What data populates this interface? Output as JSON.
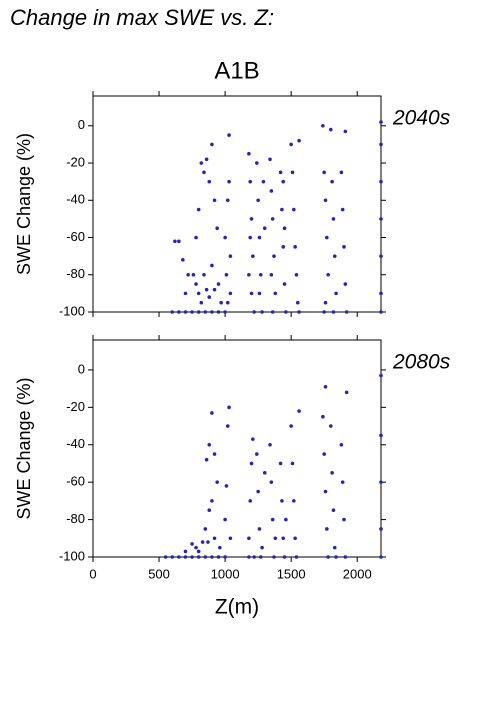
{
  "title": "Change in max SWE vs. Z:",
  "subtitle": "A1B",
  "chart_data": [
    {
      "type": "scatter",
      "label": "2040s",
      "ylabel": "SWE Change (%)",
      "color": "#2626b4",
      "label_color": "#2626b4",
      "xlim": [
        0,
        2180
      ],
      "ylim": [
        -100,
        16
      ],
      "xticks": [
        0,
        500,
        1000,
        1500,
        2000
      ],
      "yticks": [
        -100,
        -80,
        -60,
        -40,
        -20,
        0
      ],
      "show_xtick_labels": false,
      "x": [
        600,
        650,
        700,
        750,
        800,
        850,
        900,
        950,
        1000,
        620,
        650,
        680,
        700,
        720,
        760,
        780,
        800,
        820,
        840,
        860,
        880,
        780,
        800,
        820,
        840,
        860,
        880,
        900,
        920,
        940,
        900,
        920,
        950,
        970,
        1000,
        1010,
        1020,
        1030,
        1030,
        1040,
        1040,
        1020,
        1180,
        1190,
        1200,
        1210,
        1200,
        1220,
        1180,
        1190,
        1240,
        1250,
        1260,
        1270,
        1280,
        1290,
        1300,
        1260,
        1340,
        1350,
        1360,
        1370,
        1380,
        1360,
        1350,
        1420,
        1430,
        1440,
        1450,
        1460,
        1440,
        1450,
        1500,
        1510,
        1520,
        1530,
        1540,
        1550,
        1560,
        1560,
        1740,
        1750,
        1760,
        1770,
        1780,
        1750,
        1760,
        1800,
        1810,
        1820,
        1830,
        1840,
        1820,
        1880,
        1890,
        1900,
        1910,
        1920,
        1910,
        2180,
        2180,
        2180,
        2180,
        2180,
        2180,
        2180
      ],
      "values": [
        -100,
        -100,
        -100,
        -100,
        -100,
        -100,
        -100,
        -100,
        -100,
        -62,
        -62,
        -72,
        -90,
        -80,
        -80,
        -85,
        -90,
        -95,
        -80,
        -88,
        -92,
        -60,
        -45,
        -20,
        -25,
        -18,
        -30,
        -10,
        -40,
        -55,
        -75,
        -88,
        -85,
        -95,
        -60,
        -80,
        -40,
        -5,
        -30,
        -90,
        -70,
        -95,
        -15,
        -30,
        -50,
        -70,
        -90,
        -100,
        -80,
        -60,
        -20,
        -40,
        -60,
        -80,
        -100,
        -30,
        -55,
        -90,
        -18,
        -35,
        -50,
        -70,
        -90,
        -100,
        -80,
        -25,
        -45,
        -65,
        -85,
        -100,
        -30,
        -55,
        -10,
        -25,
        -45,
        -65,
        -80,
        -95,
        -8,
        -100,
        0,
        -25,
        -40,
        -60,
        -80,
        -100,
        -95,
        -2,
        -30,
        -50,
        -70,
        -90,
        -100,
        -25,
        -45,
        -65,
        -85,
        -100,
        -3,
        2,
        -10,
        -30,
        -50,
        -70,
        -90,
        -100
      ]
    },
    {
      "type": "scatter",
      "label": "2080s",
      "ylabel": "SWE Change (%)",
      "xlabel": "Z(m)",
      "color": "#2626b4",
      "label_color": "#2626b4",
      "xlim": [
        0,
        2180
      ],
      "ylim": [
        -100,
        16
      ],
      "xticks": [
        0,
        500,
        1000,
        1500,
        2000
      ],
      "yticks": [
        -100,
        -80,
        -60,
        -40,
        -20,
        0
      ],
      "show_xtick_labels": true,
      "x": [
        550,
        600,
        650,
        700,
        750,
        800,
        850,
        900,
        950,
        1000,
        700,
        750,
        780,
        800,
        830,
        850,
        870,
        880,
        900,
        860,
        880,
        900,
        920,
        940,
        960,
        920,
        1000,
        1010,
        1020,
        1030,
        1040,
        1180,
        1190,
        1200,
        1210,
        1220,
        1180,
        1240,
        1250,
        1260,
        1270,
        1280,
        1300,
        1340,
        1350,
        1360,
        1370,
        1380,
        1420,
        1430,
        1440,
        1450,
        1460,
        1500,
        1510,
        1520,
        1530,
        1540,
        1560,
        1740,
        1750,
        1760,
        1770,
        1780,
        1760,
        1800,
        1810,
        1820,
        1830,
        1840,
        1880,
        1890,
        1900,
        1910,
        1920,
        2180,
        2180,
        2180,
        2180,
        2180
      ],
      "values": [
        -100,
        -100,
        -100,
        -100,
        -100,
        -100,
        -100,
        -100,
        -100,
        -100,
        -97,
        -93,
        -95,
        -97,
        -92,
        -85,
        -92,
        -75,
        -70,
        -48,
        -40,
        -23,
        -45,
        -60,
        -95,
        -90,
        -80,
        -62,
        -30,
        -20,
        -90,
        -90,
        -70,
        -50,
        -37,
        -100,
        -100,
        -45,
        -65,
        -85,
        -100,
        -95,
        -55,
        -40,
        -60,
        -80,
        -100,
        -90,
        -50,
        -70,
        -90,
        -100,
        -80,
        -30,
        -50,
        -70,
        -90,
        -100,
        -22,
        -25,
        -45,
        -65,
        -85,
        -100,
        -9,
        -30,
        -55,
        -75,
        -95,
        -100,
        -40,
        -60,
        -80,
        -100,
        -12,
        -3,
        -35,
        -60,
        -85,
        -100
      ]
    }
  ]
}
